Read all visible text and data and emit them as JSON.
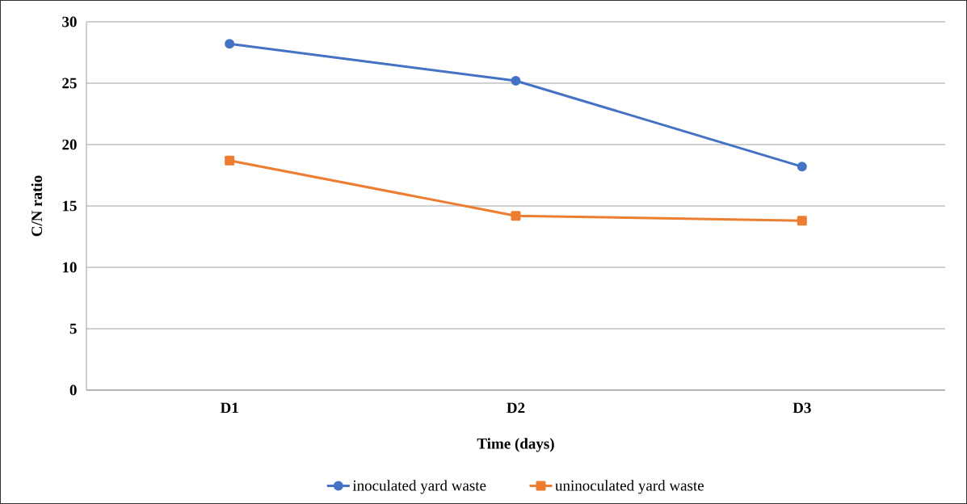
{
  "chart_data": {
    "type": "line",
    "xlabel": "Time (days)",
    "ylabel": "C/N ratio",
    "categories": [
      "D1",
      "D2",
      "D3"
    ],
    "series": [
      {
        "name": "inoculated yard waste",
        "color": "#4472c4",
        "marker": "circle",
        "values": [
          28.2,
          25.2,
          18.2
        ]
      },
      {
        "name": "uninoculated yard waste",
        "color": "#ed7d31",
        "marker": "square",
        "values": [
          18.7,
          14.2,
          13.8
        ]
      }
    ],
    "ylim": [
      0,
      30
    ],
    "yticks": [
      0,
      5,
      10,
      15,
      20,
      25,
      30
    ],
    "grid": "y",
    "legend": "bottom"
  }
}
